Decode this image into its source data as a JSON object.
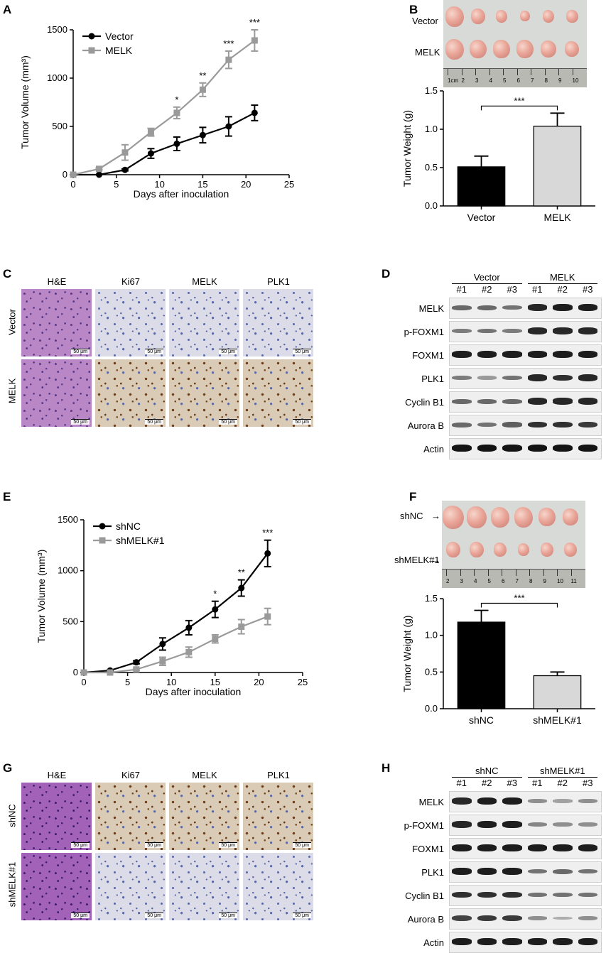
{
  "panel_letters": [
    "A",
    "B",
    "C",
    "D",
    "E",
    "F",
    "G",
    "H"
  ],
  "chart_data": [
    {
      "id": "A",
      "type": "line",
      "xlabel": "Days after inoculation",
      "ylabel": "Tumor Volume (mm³)",
      "xlim": [
        0,
        25
      ],
      "ylim": [
        0,
        1500
      ],
      "xticks": [
        "0",
        "5",
        "10",
        "15",
        "20",
        "25"
      ],
      "yticks": [
        "0",
        "500",
        "1000",
        "1500"
      ],
      "legend_position": "top-left",
      "x": [
        0,
        3,
        6,
        9,
        12,
        15,
        18,
        21
      ],
      "series": [
        {
          "name": "Vector",
          "color": "#000000",
          "marker": "circle",
          "values": [
            0,
            0,
            50,
            220,
            320,
            410,
            500,
            640
          ],
          "errors": [
            0,
            0,
            10,
            50,
            70,
            80,
            100,
            80
          ]
        },
        {
          "name": "MELK",
          "color": "#9a9a9a",
          "marker": "square",
          "values": [
            0,
            60,
            230,
            440,
            640,
            880,
            1190,
            1390
          ],
          "errors": [
            0,
            10,
            80,
            40,
            60,
            70,
            90,
            110
          ]
        }
      ],
      "annotations": [
        {
          "x": 12,
          "text": "*"
        },
        {
          "x": 15,
          "text": "**"
        },
        {
          "x": 18,
          "text": "***"
        },
        {
          "x": 21,
          "text": "***"
        }
      ]
    },
    {
      "id": "B",
      "type": "bar",
      "ylabel": "Tumor Weight (g)",
      "ylim": [
        0,
        1.5
      ],
      "yticks": [
        "0.0",
        "0.5",
        "1.0",
        "1.5"
      ],
      "categories": [
        "Vector",
        "MELK"
      ],
      "values": [
        0.51,
        1.04
      ],
      "errors": [
        0.14,
        0.17
      ],
      "colors": [
        "#000000",
        "#d8d8d8"
      ],
      "significance": "***"
    },
    {
      "id": "E",
      "type": "line",
      "xlabel": "Days after inoculation",
      "ylabel": "Tumor Volume (mm³)",
      "xlim": [
        0,
        25
      ],
      "ylim": [
        0,
        1500
      ],
      "xticks": [
        "0",
        "5",
        "10",
        "15",
        "20",
        "25"
      ],
      "yticks": [
        "0",
        "500",
        "1000",
        "1500"
      ],
      "legend_position": "top-left",
      "x": [
        0,
        3,
        6,
        9,
        12,
        15,
        18,
        21
      ],
      "series": [
        {
          "name": "shNC",
          "color": "#000000",
          "marker": "circle",
          "values": [
            0,
            20,
            100,
            280,
            440,
            620,
            830,
            1170
          ],
          "errors": [
            0,
            5,
            15,
            60,
            70,
            80,
            80,
            130
          ]
        },
        {
          "name": "shMELK#1",
          "color": "#9a9a9a",
          "marker": "square",
          "values": [
            0,
            0,
            30,
            110,
            200,
            330,
            450,
            550
          ],
          "errors": [
            0,
            0,
            10,
            40,
            50,
            40,
            70,
            80
          ]
        }
      ],
      "annotations": [
        {
          "x": 15,
          "text": "*"
        },
        {
          "x": 18,
          "text": "**"
        },
        {
          "x": 21,
          "text": "***"
        }
      ]
    },
    {
      "id": "F",
      "type": "bar",
      "ylabel": "Tumor Weight (g)",
      "ylim": [
        0,
        1.5
      ],
      "yticks": [
        "0.0",
        "0.5",
        "1.0",
        "1.5"
      ],
      "categories": [
        "shNC",
        "shMELK#1"
      ],
      "values": [
        1.18,
        0.45
      ],
      "errors": [
        0.16,
        0.05
      ],
      "colors": [
        "#000000",
        "#d8d8d8"
      ],
      "significance": "***"
    }
  ],
  "panel_b_photo": {
    "rows": [
      "Vector",
      "MELK"
    ],
    "ruler_labels": [
      "1cm",
      "2",
      "3",
      "4",
      "5",
      "6",
      "7",
      "8",
      "9",
      "10"
    ]
  },
  "panel_f_photo": {
    "rows": [
      "shNC",
      "shMELK#1"
    ],
    "ruler_labels": [
      "2",
      "3",
      "4",
      "5",
      "6",
      "7",
      "8",
      "9",
      "10",
      "11"
    ]
  },
  "panel_c": {
    "columns": [
      "H&E",
      "Ki67",
      "MELK",
      "PLK1"
    ],
    "rows": [
      "Vector",
      "MELK"
    ],
    "scale_bar": "50 μm"
  },
  "panel_g": {
    "columns": [
      "H&E",
      "Ki67",
      "MELK",
      "PLK1"
    ],
    "rows": [
      "shNC",
      "shMELK#1"
    ],
    "scale_bar": "50 μm"
  },
  "panel_d": {
    "groups": [
      "Vector",
      "MELK"
    ],
    "lanes": [
      "#1",
      "#2",
      "#3",
      "#1",
      "#2",
      "#3"
    ],
    "proteins": [
      "MELK",
      "p-FOXM1",
      "FOXM1",
      "PLK1",
      "Cyclin B1",
      "Aurora B",
      "Actin"
    ]
  },
  "panel_h": {
    "groups": [
      "shNC",
      "shMELK#1"
    ],
    "lanes": [
      "#1",
      "#2",
      "#3",
      "#1",
      "#2",
      "#3"
    ],
    "proteins": [
      "MELK",
      "p-FOXM1",
      "FOXM1",
      "PLK1",
      "Cyclin B1",
      "Aurora B",
      "Actin"
    ]
  }
}
